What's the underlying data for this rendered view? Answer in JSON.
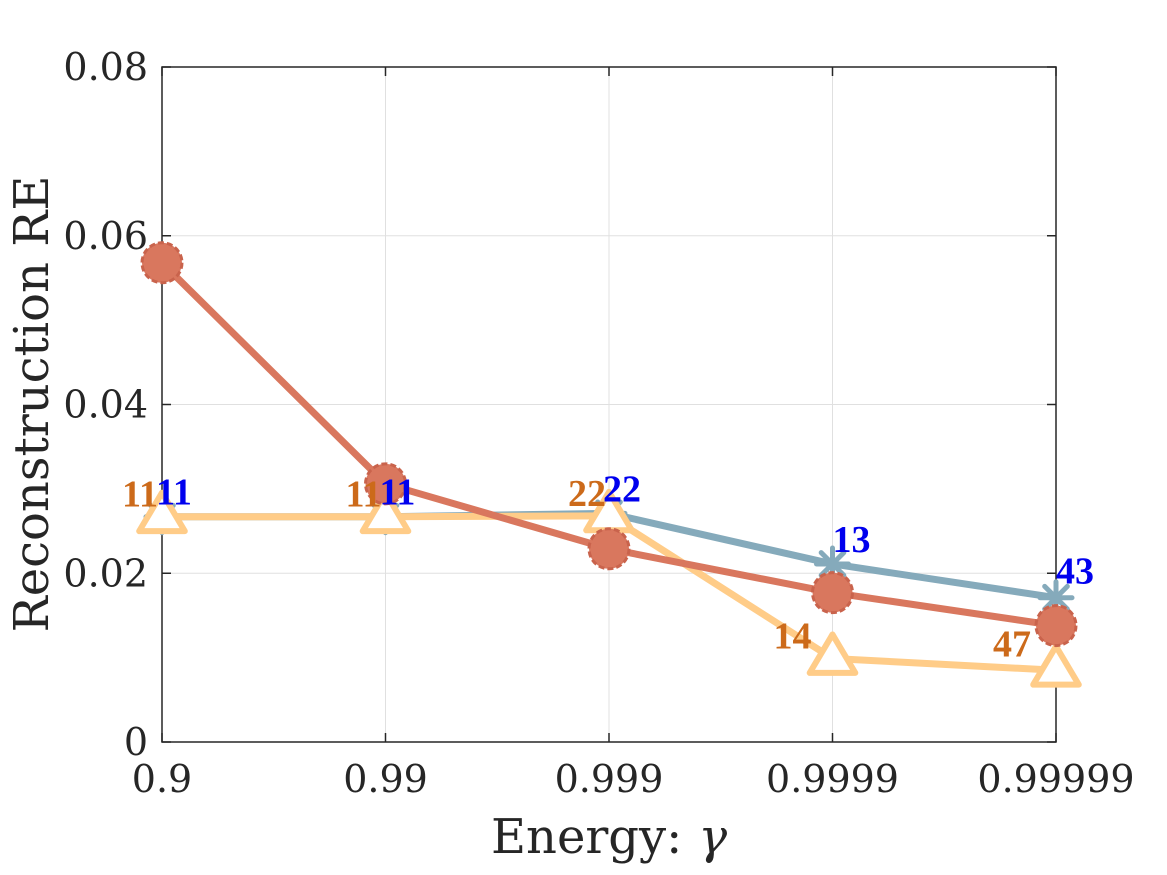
{
  "chart_data": {
    "type": "line",
    "categories": [
      "0.9",
      "0.99",
      "0.999",
      "0.9999",
      "0.99999"
    ],
    "xlabel": "Energy:",
    "xlabel_symbol": "γ",
    "ylabel": "Reconstruction RE",
    "ylim": [
      0,
      0.08
    ],
    "yticks": [
      0,
      0.02,
      0.04,
      0.06,
      0.08
    ],
    "ytick_labels": [
      "0",
      "0.02",
      "0.04",
      "0.06",
      "0.08"
    ],
    "grid": true,
    "series": [
      {
        "marker": "circle",
        "color": "#D9775E",
        "values": [
          0.0568,
          0.0306,
          0.0229,
          0.0177,
          0.0138
        ],
        "labels": [
          "",
          "",
          "",
          "",
          ""
        ]
      },
      {
        "marker": "star",
        "color": "#85AABB",
        "values": [
          0.0267,
          0.0267,
          0.0271,
          0.0211,
          0.0171
        ],
        "labels": [
          "11",
          "11",
          "22",
          "13",
          "43"
        ],
        "label_color": "#0000EE"
      },
      {
        "marker": "triangle",
        "color": "#FFCC88",
        "values": [
          0.0267,
          0.0267,
          0.0268,
          0.0099,
          0.0085
        ],
        "labels": [
          "11",
          "11",
          "22",
          "14",
          "47"
        ],
        "label_color": "#CC6A1A"
      }
    ]
  }
}
